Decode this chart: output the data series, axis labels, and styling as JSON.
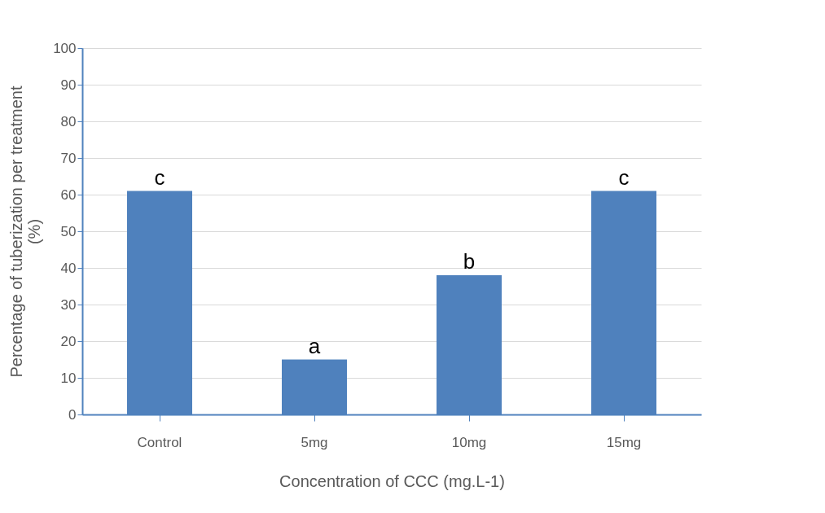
{
  "chart_data": {
    "type": "bar",
    "xlabel": "Concentration of CCC (mg.L-1)",
    "ylabel": "Percentage of tuberization per treatment (%)",
    "categories": [
      "Control",
      "5mg",
      "10mg",
      "15mg"
    ],
    "values": [
      61,
      15,
      38,
      61
    ],
    "color": "#4f81bd",
    "ylim": [
      0,
      100
    ],
    "yticks": [
      0,
      10,
      20,
      30,
      40,
      50,
      60,
      70,
      80,
      90,
      100
    ],
    "grid": "y",
    "annotations": [
      {
        "text": "c",
        "x": "Control",
        "y": 61
      },
      {
        "text": "a",
        "x": "5mg",
        "y": 15
      },
      {
        "text": "b",
        "x": "10mg",
        "y": 38
      },
      {
        "text": "c",
        "x": "15mg",
        "y": 61
      }
    ]
  }
}
